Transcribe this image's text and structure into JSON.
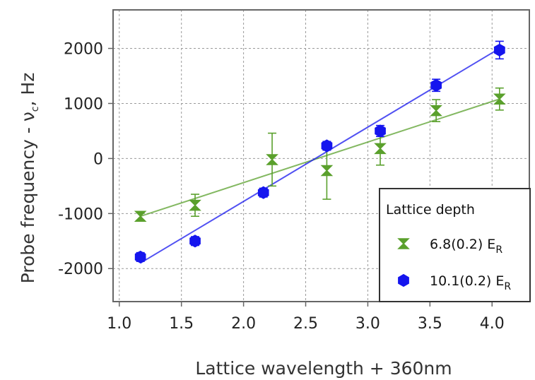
{
  "chart_data": {
    "type": "scatter",
    "xlabel": "Lattice wavelength + 360nm",
    "ylabel_prefix": "Probe frequency - ν",
    "ylabel_sub": "c",
    "ylabel_suffix": ", Hz",
    "xlim": [
      0.95,
      4.3
    ],
    "ylim": [
      -2600,
      2700
    ],
    "xticks": [
      1.0,
      1.5,
      2.0,
      2.5,
      3.0,
      3.5,
      4.0
    ],
    "xtick_labels": [
      "1.0",
      "1.5",
      "2.0",
      "2.5",
      "3.0",
      "3.5",
      "4.0"
    ],
    "yticks": [
      -2000,
      -1000,
      0,
      1000,
      2000
    ],
    "ytick_labels": [
      "-2000",
      "-1000",
      "0",
      "1000",
      "2000"
    ],
    "grid": true,
    "legend": {
      "title": "Lattice depth",
      "placement": "bottom-right"
    },
    "series": [
      {
        "name_main": "6.8(0.2) E",
        "name_sub": "R",
        "color": "#5aa02c",
        "marker": "bowtie",
        "x": [
          1.17,
          1.61,
          2.23,
          2.67,
          3.1,
          3.55,
          4.06
        ],
        "y": [
          -1050,
          -850,
          -20,
          -220,
          180,
          870,
          1080
        ],
        "err": [
          70,
          200,
          480,
          520,
          300,
          200,
          200
        ],
        "fit": {
          "x": [
            1.17,
            4.06
          ],
          "y": [
            -1050,
            1080
          ]
        }
      },
      {
        "name_main": "10.1(0.2) E",
        "name_sub": "R",
        "color": "#1515ee",
        "marker": "hexagon",
        "x": [
          1.17,
          1.61,
          2.16,
          2.67,
          3.1,
          3.55,
          4.06
        ],
        "y": [
          -1790,
          -1500,
          -620,
          230,
          500,
          1330,
          1970
        ],
        "err": [
          80,
          80,
          80,
          80,
          100,
          110,
          160
        ],
        "fit": {
          "x": [
            1.17,
            4.06
          ],
          "y": [
            -1900,
            2000
          ]
        }
      }
    ]
  }
}
